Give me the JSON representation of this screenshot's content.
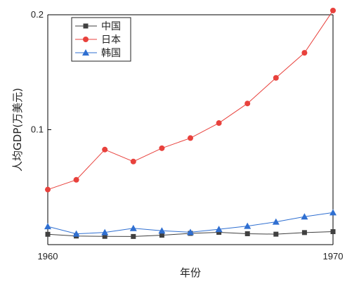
{
  "chart_data": {
    "type": "line",
    "title": "",
    "xlabel": "年份",
    "ylabel": "人均GDP(万美元)",
    "x": [
      1960,
      1961,
      1962,
      1963,
      1964,
      1965,
      1966,
      1967,
      1968,
      1969,
      1970
    ],
    "xlim": [
      1960,
      1970
    ],
    "ylim": [
      0.0,
      0.2
    ],
    "x_ticks": [
      "1960",
      "1970"
    ],
    "y_ticks": [
      "0.1",
      "0.2"
    ],
    "grid": false,
    "legend_position": "top-left",
    "series": [
      {
        "name": "中国",
        "marker": "square",
        "color": "#404040",
        "values": [
          0.009,
          0.0075,
          0.0072,
          0.0071,
          0.0082,
          0.0098,
          0.0107,
          0.0095,
          0.0091,
          0.0105,
          0.0113
        ]
      },
      {
        "name": "日本",
        "marker": "circle",
        "color": "#e8413c",
        "values": [
          0.0479,
          0.0564,
          0.0827,
          0.0723,
          0.0839,
          0.0927,
          0.1058,
          0.1228,
          0.1451,
          0.1669,
          0.2037
        ]
      },
      {
        "name": "韩国",
        "marker": "triangle",
        "color": "#2f6fd1",
        "values": [
          0.0158,
          0.0094,
          0.0106,
          0.0142,
          0.0121,
          0.0108,
          0.0134,
          0.0161,
          0.0198,
          0.0243,
          0.0279
        ]
      }
    ]
  }
}
